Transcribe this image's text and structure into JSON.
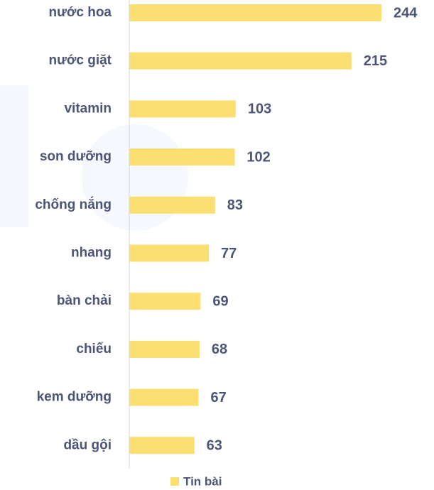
{
  "chart_data": {
    "type": "bar",
    "orientation": "horizontal",
    "categories": [
      "nước hoa",
      "nước giặt",
      "vitamin",
      "son dưỡng",
      "chống nắng",
      "nhang",
      "bàn chải",
      "chiếu",
      "kem dưỡng",
      "dầu gội"
    ],
    "series": [
      {
        "name": "Tin bài",
        "color": "#fbdf70",
        "values": [
          244,
          215,
          103,
          102,
          83,
          77,
          69,
          68,
          67,
          63
        ]
      }
    ],
    "legend": "bottom"
  }
}
